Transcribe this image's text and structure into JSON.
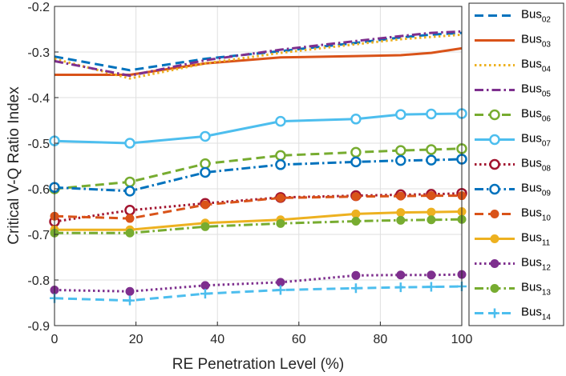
{
  "chart_data": {
    "type": "line",
    "title": "",
    "xlabel": "RE Penetration Level (%)",
    "ylabel": "Critical V-Q Ratio Index",
    "xlim": [
      0,
      100
    ],
    "ylim": [
      -0.9,
      -0.2
    ],
    "xticks": [
      "0",
      "20",
      "40",
      "60",
      "80",
      "100"
    ],
    "yticks": [
      "-0.9",
      "-0.8",
      "-0.7",
      "-0.6",
      "-0.5",
      "-0.4",
      "-0.3",
      "-0.2"
    ],
    "grid": true,
    "legend_position": "right",
    "x": [
      0,
      18.5,
      37,
      55.5,
      74,
      85,
      92.5,
      100
    ],
    "series": [
      {
        "name": "Bus",
        "sub": "02",
        "color": "#0072BD",
        "dash": "dashed",
        "marker": "none",
        "values": [
          -0.31,
          -0.34,
          -0.315,
          -0.298,
          -0.28,
          -0.268,
          -0.262,
          -0.258
        ]
      },
      {
        "name": "Bus",
        "sub": "03",
        "color": "#D95319",
        "dash": "solid",
        "marker": "none",
        "values": [
          -0.35,
          -0.35,
          -0.325,
          -0.312,
          -0.309,
          -0.307,
          -0.302,
          -0.292
        ]
      },
      {
        "name": "Bus",
        "sub": "04",
        "color": "#EDB120",
        "dash": "dotted",
        "marker": "none",
        "values": [
          -0.315,
          -0.358,
          -0.325,
          -0.302,
          -0.283,
          -0.272,
          -0.267,
          -0.262
        ]
      },
      {
        "name": "Bus",
        "sub": "05",
        "color": "#7E2F8E",
        "dash": "dashdot",
        "marker": "none",
        "values": [
          -0.32,
          -0.352,
          -0.318,
          -0.295,
          -0.276,
          -0.265,
          -0.258,
          -0.255
        ]
      },
      {
        "name": "Bus",
        "sub": "06",
        "color": "#77AC30",
        "dash": "dashed",
        "marker": "circle",
        "values": [
          -0.6,
          -0.585,
          -0.545,
          -0.527,
          -0.52,
          -0.516,
          -0.514,
          -0.512
        ]
      },
      {
        "name": "Bus",
        "sub": "07",
        "color": "#4DBEEE",
        "dash": "solid",
        "marker": "circle",
        "values": [
          -0.495,
          -0.5,
          -0.485,
          -0.452,
          -0.447,
          -0.437,
          -0.436,
          -0.435
        ]
      },
      {
        "name": "Bus",
        "sub": "08",
        "color": "#A2142F",
        "dash": "dotted",
        "marker": "circle",
        "values": [
          -0.672,
          -0.647,
          -0.632,
          -0.619,
          -0.615,
          -0.613,
          -0.612,
          -0.61
        ]
      },
      {
        "name": "Bus",
        "sub": "09",
        "color": "#0072BD",
        "dash": "dashdot",
        "marker": "circle",
        "values": [
          -0.597,
          -0.605,
          -0.564,
          -0.547,
          -0.541,
          -0.538,
          -0.537,
          -0.535
        ]
      },
      {
        "name": "Bus",
        "sub": "10",
        "color": "#D95319",
        "dash": "dashed",
        "marker": "dot",
        "values": [
          -0.66,
          -0.665,
          -0.635,
          -0.62,
          -0.617,
          -0.616,
          -0.615,
          -0.615
        ]
      },
      {
        "name": "Bus",
        "sub": "11",
        "color": "#EDB120",
        "dash": "solid",
        "marker": "dot",
        "values": [
          -0.69,
          -0.69,
          -0.675,
          -0.668,
          -0.655,
          -0.652,
          -0.651,
          -0.65
        ]
      },
      {
        "name": "Bus",
        "sub": "12",
        "color": "#7E2F8E",
        "dash": "dotted",
        "marker": "dot",
        "values": [
          -0.822,
          -0.825,
          -0.812,
          -0.805,
          -0.79,
          -0.789,
          -0.789,
          -0.788
        ]
      },
      {
        "name": "Bus",
        "sub": "13",
        "color": "#77AC30",
        "dash": "dashdot",
        "marker": "dot",
        "values": [
          -0.697,
          -0.697,
          -0.683,
          -0.676,
          -0.671,
          -0.669,
          -0.668,
          -0.667
        ]
      },
      {
        "name": "Bus",
        "sub": "14",
        "color": "#4DBEEE",
        "dash": "dashed",
        "marker": "plus",
        "values": [
          -0.84,
          -0.845,
          -0.83,
          -0.822,
          -0.818,
          -0.816,
          -0.815,
          -0.814
        ]
      }
    ]
  }
}
